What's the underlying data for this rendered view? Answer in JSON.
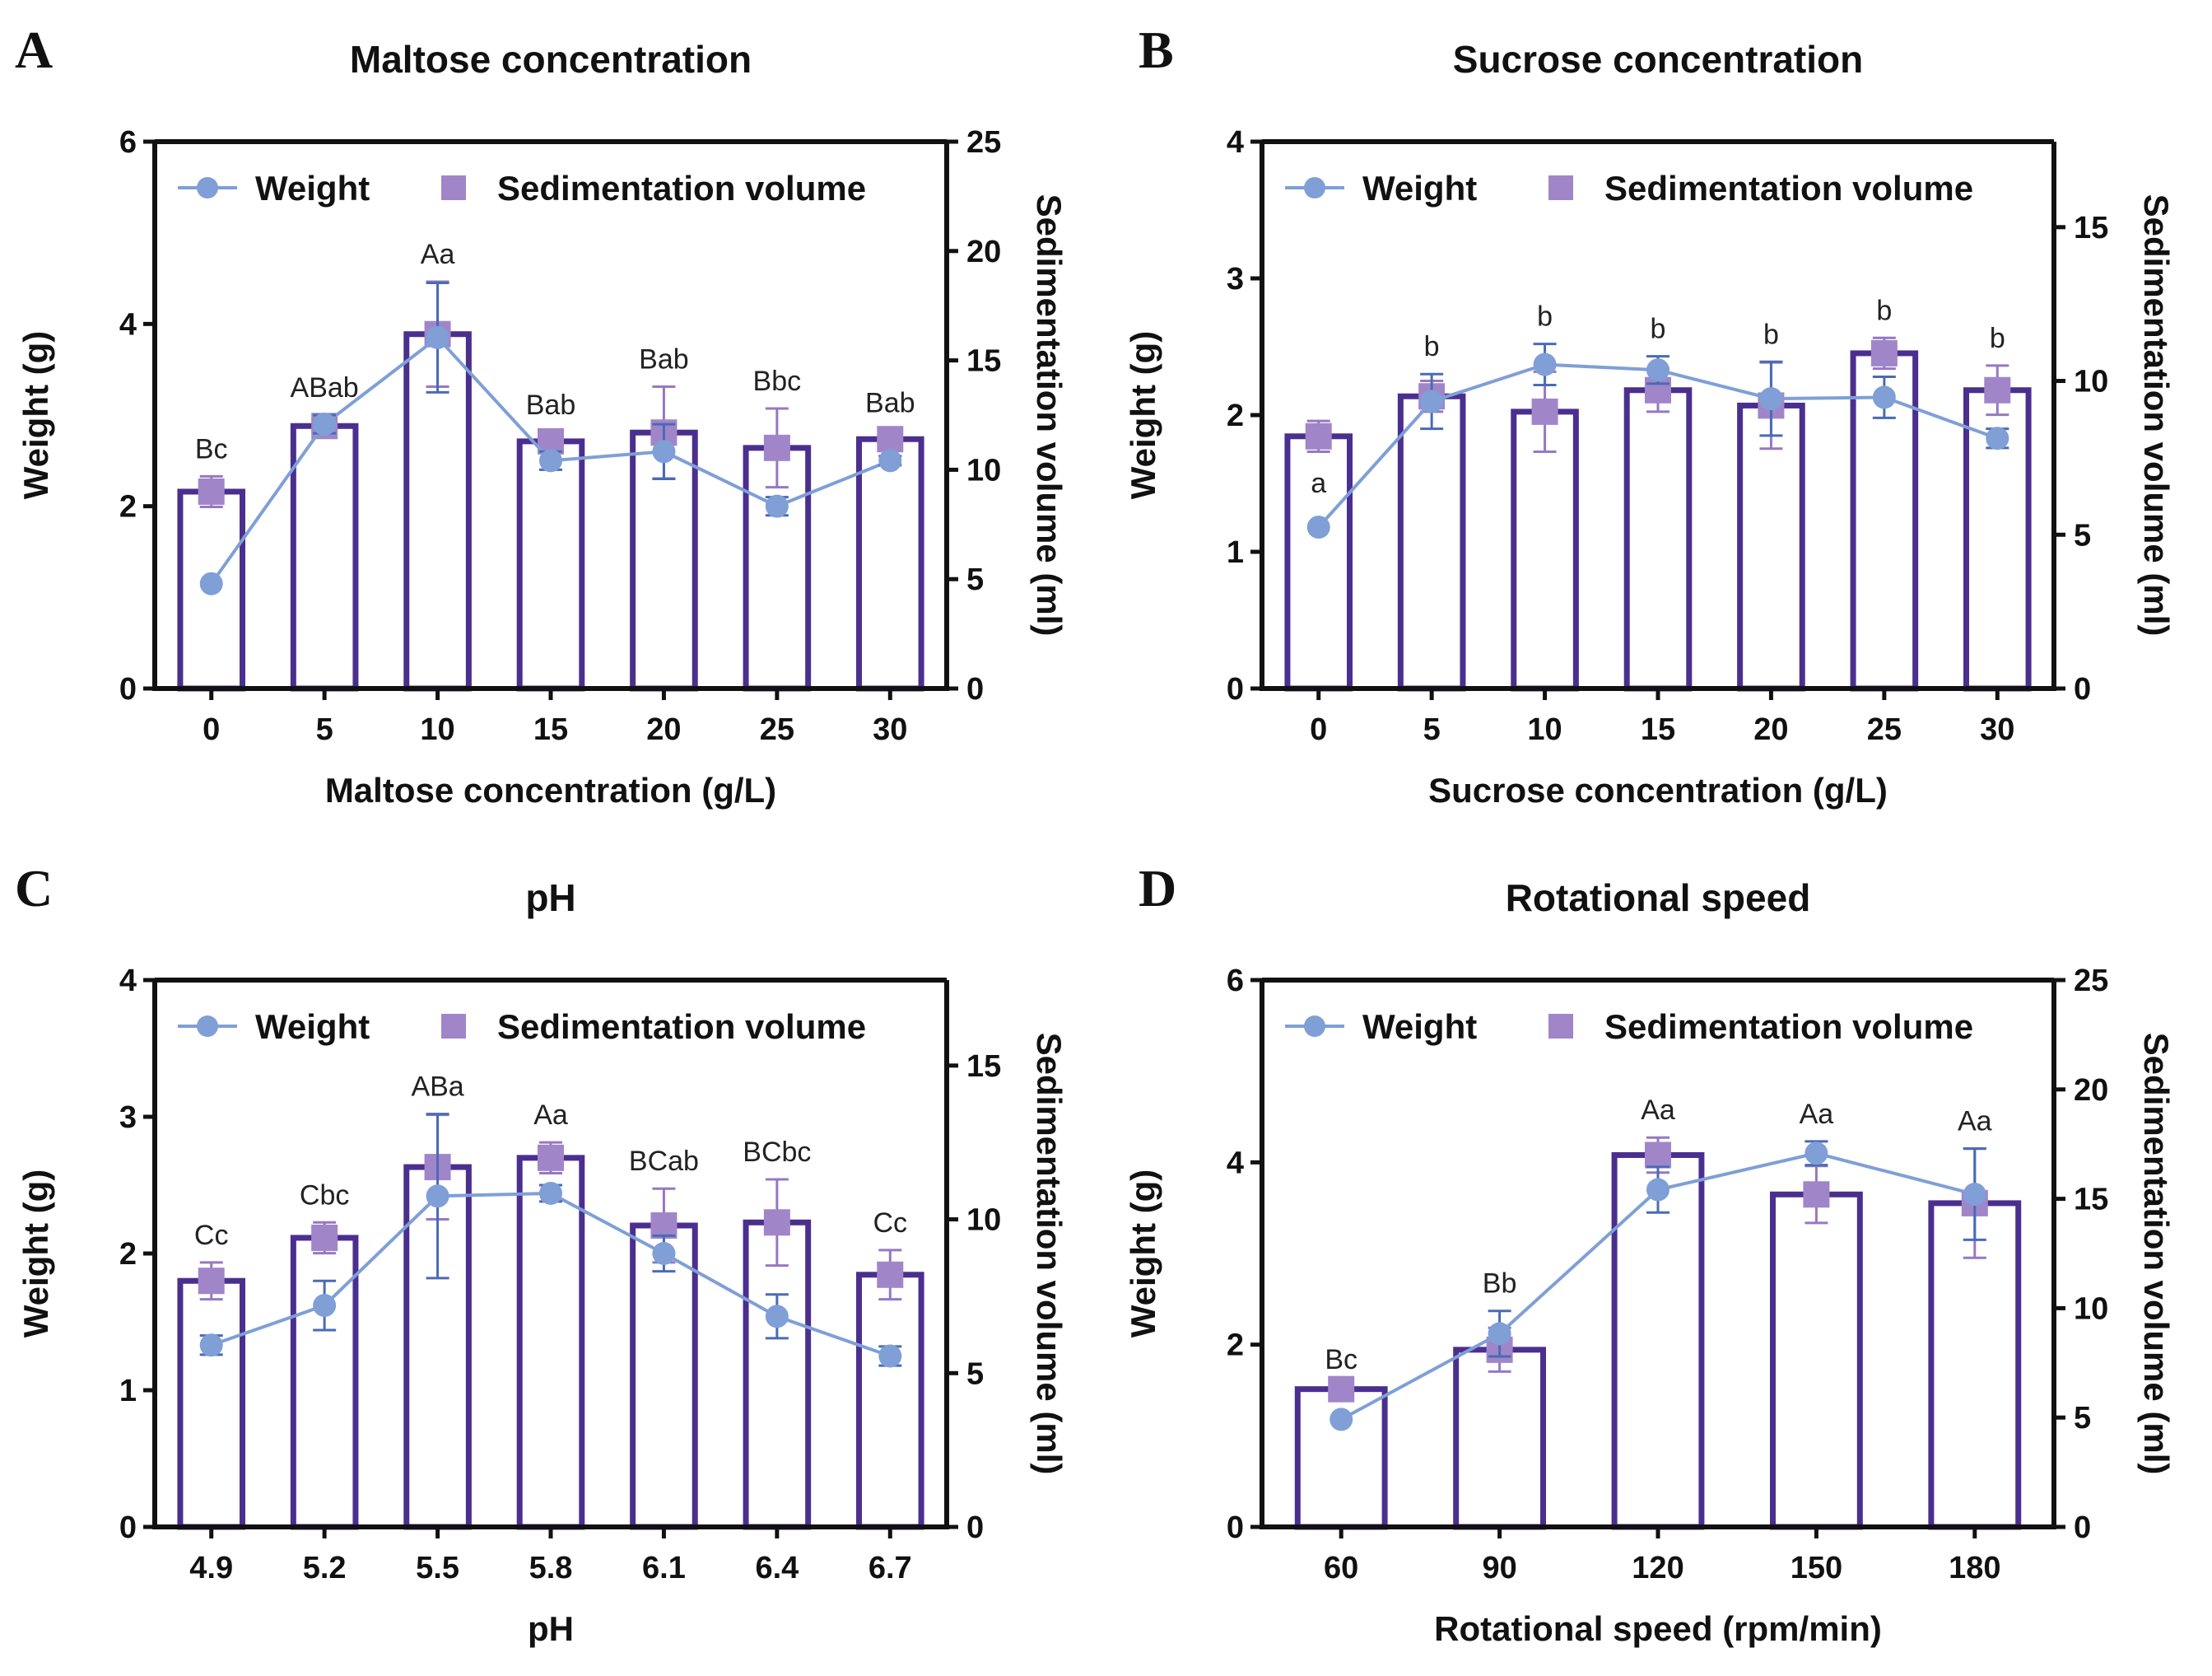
{
  "colors": {
    "bar_stroke": "#4b2f8f",
    "weight_line": "#7f9fd6",
    "weight_marker": "#7f9fd6",
    "weight_err": "#4a6bb5",
    "sed_marker": "#a086c9",
    "sed_err": "#9678c2",
    "axis": "#111111"
  },
  "legend": {
    "weight": "Weight",
    "sedimentation": "Sedimentation volume"
  },
  "chart_data": [
    {
      "panel": "A",
      "type": "bar",
      "title": "Maltose concentration",
      "xlabel": "Maltose concentration (g/L)",
      "ylabel_left": "Weight (g)",
      "ylabel_right": "Sedimentation volume (ml)",
      "categories": [
        "0",
        "5",
        "10",
        "15",
        "20",
        "25",
        "30"
      ],
      "ylim_left": [
        0,
        6
      ],
      "yticks_left": [
        0,
        2,
        4,
        6
      ],
      "ylim_right": [
        0,
        25
      ],
      "yticks_right": [
        0,
        5,
        10,
        15,
        20,
        25
      ],
      "series": [
        {
          "name": "Sedimentation volume",
          "kind": "bar",
          "axis": "right",
          "values": [
            9.0,
            12.0,
            16.2,
            11.3,
            11.7,
            11.0,
            11.4
          ],
          "errors": [
            0.7,
            0.4,
            2.4,
            0.4,
            2.1,
            1.8,
            0.4
          ]
        },
        {
          "name": "Weight",
          "kind": "line",
          "axis": "left",
          "values": [
            1.15,
            2.9,
            3.85,
            2.5,
            2.6,
            2.0,
            2.5
          ],
          "errors": [
            0.0,
            0.1,
            0.6,
            0.1,
            0.3,
            0.1,
            0.05
          ]
        }
      ],
      "labels": [
        "Bc",
        "ABab",
        "Aa",
        "Bab",
        "Bab",
        "Bbc",
        "Bab"
      ]
    },
    {
      "panel": "B",
      "type": "bar",
      "title": "Sucrose concentration",
      "xlabel": "Sucrose concentration (g/L)",
      "ylabel_left": "Weight (g)",
      "ylabel_right": "Sedimentation volume (ml)",
      "categories": [
        "0",
        "5",
        "10",
        "15",
        "20",
        "25",
        "30"
      ],
      "ylim_left": [
        0,
        4
      ],
      "yticks_left": [
        0,
        1,
        2,
        3,
        4
      ],
      "ylim_right": [
        0,
        17.78
      ],
      "yticks_right": [
        0,
        5,
        10,
        15
      ],
      "series": [
        {
          "name": "Sedimentation volume",
          "kind": "bar",
          "axis": "right",
          "values": [
            8.2,
            9.5,
            9.0,
            9.7,
            9.2,
            10.9,
            9.7
          ],
          "errors": [
            0.5,
            0.5,
            1.3,
            0.7,
            1.4,
            0.5,
            0.8
          ]
        },
        {
          "name": "Weight",
          "kind": "line",
          "axis": "left",
          "values": [
            1.18,
            2.1,
            2.37,
            2.33,
            2.12,
            2.13,
            1.83
          ],
          "errors": [
            0.0,
            0.2,
            0.15,
            0.1,
            0.27,
            0.15,
            0.07
          ]
        }
      ],
      "labels": [
        "a",
        "b",
        "b",
        "b",
        "b",
        "b",
        "b"
      ]
    },
    {
      "panel": "C",
      "type": "bar",
      "title": "pH",
      "xlabel": "pH",
      "ylabel_left": "Weight (g)",
      "ylabel_right": "Sedimentation volume (ml)",
      "categories": [
        "4.9",
        "5.2",
        "5.5",
        "5.8",
        "6.1",
        "6.4",
        "6.7"
      ],
      "ylim_left": [
        0,
        4
      ],
      "yticks_left": [
        0,
        1,
        2,
        3,
        4
      ],
      "ylim_right": [
        0,
        17.78
      ],
      "yticks_right": [
        0,
        5,
        10,
        15
      ],
      "series": [
        {
          "name": "Sedimentation volume",
          "kind": "bar",
          "axis": "right",
          "values": [
            8.0,
            9.4,
            11.7,
            12.0,
            9.8,
            9.9,
            8.2
          ],
          "errors": [
            0.6,
            0.5,
            1.7,
            0.5,
            1.2,
            1.4,
            0.8
          ]
        },
        {
          "name": "Weight",
          "kind": "line",
          "axis": "left",
          "values": [
            1.33,
            1.62,
            2.42,
            2.44,
            2.0,
            1.54,
            1.25
          ],
          "errors": [
            0.07,
            0.18,
            0.6,
            0.06,
            0.13,
            0.16,
            0.07
          ]
        }
      ],
      "labels": [
        "Cc",
        "Cbc",
        "ABa",
        "Aa",
        "BCab",
        "BCbc",
        "Cc"
      ]
    },
    {
      "panel": "D",
      "type": "bar",
      "title": "Rotational speed",
      "xlabel": "Rotational speed (rpm/min)",
      "ylabel_left": "Weight (g)",
      "ylabel_right": "Sedimentation volume (ml)",
      "categories": [
        "60",
        "90",
        "120",
        "150",
        "180"
      ],
      "ylim_left": [
        0,
        6
      ],
      "yticks_left": [
        0,
        2,
        4,
        6
      ],
      "ylim_right": [
        0,
        25
      ],
      "yticks_right": [
        0,
        5,
        10,
        15,
        20,
        25
      ],
      "series": [
        {
          "name": "Sedimentation volume",
          "kind": "bar",
          "axis": "right",
          "values": [
            6.3,
            8.1,
            17.0,
            15.2,
            14.8
          ],
          "errors": [
            0.1,
            1.0,
            0.8,
            1.3,
            2.5
          ]
        },
        {
          "name": "Weight",
          "kind": "line",
          "axis": "left",
          "values": [
            1.18,
            2.12,
            3.7,
            4.1,
            3.65
          ],
          "errors": [
            0.0,
            0.25,
            0.25,
            0.13,
            0.5
          ]
        }
      ],
      "labels": [
        "Bc",
        "Bb",
        "Aa",
        "Aa",
        "Aa"
      ]
    }
  ]
}
